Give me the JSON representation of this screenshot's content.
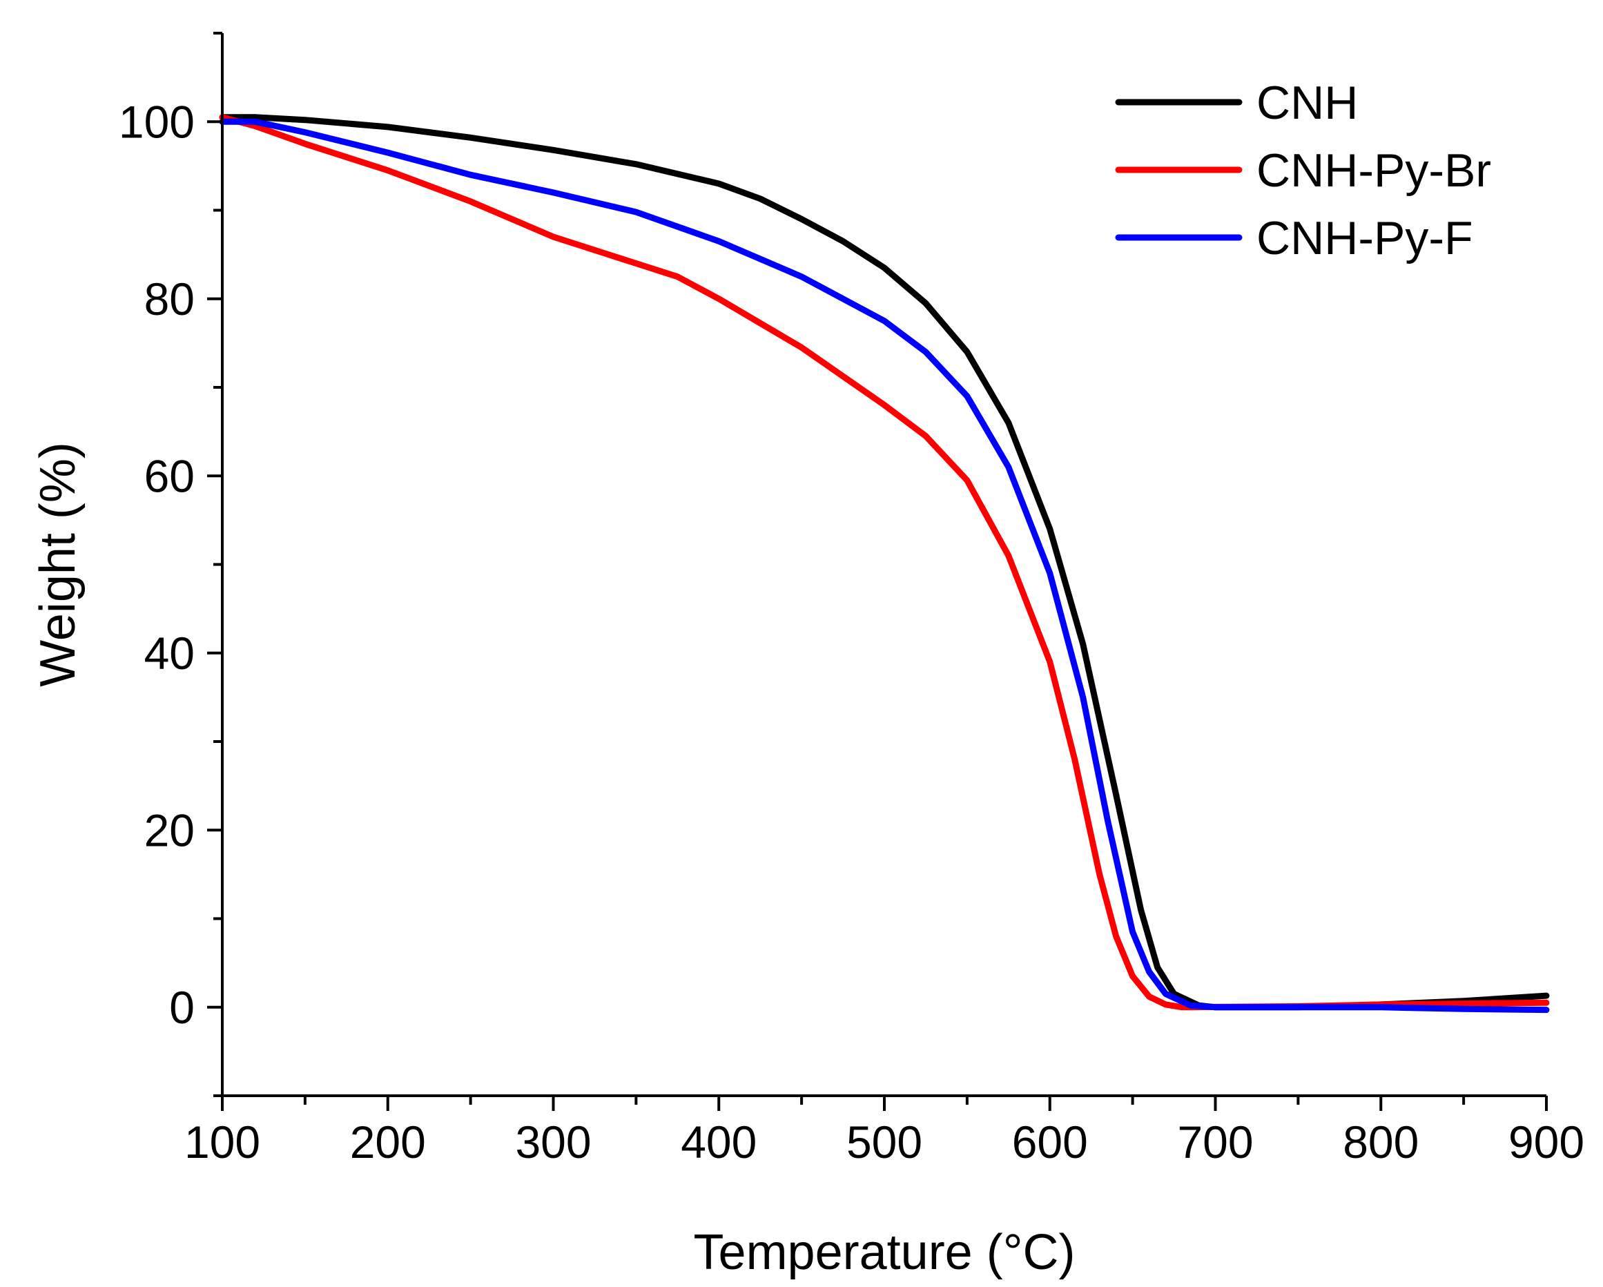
{
  "chart_data": {
    "type": "line",
    "title": "",
    "xlabel": "Temperature (°C)",
    "ylabel": "Weight (%)",
    "xlim": [
      100,
      900
    ],
    "ylim": [
      -10,
      110
    ],
    "x_ticks": [
      100,
      200,
      300,
      400,
      500,
      600,
      700,
      800,
      900
    ],
    "y_ticks": [
      0,
      20,
      40,
      60,
      80,
      100
    ],
    "x_minor_step": 50,
    "y_minor_step": 10,
    "grid": false,
    "legend_position": "top-right",
    "series": [
      {
        "name": "CNH",
        "color": "#000000",
        "points": [
          [
            100,
            100.5
          ],
          [
            120,
            100.5
          ],
          [
            150,
            100.2
          ],
          [
            200,
            99.4
          ],
          [
            250,
            98.2
          ],
          [
            300,
            96.8
          ],
          [
            350,
            95.2
          ],
          [
            400,
            93.0
          ],
          [
            425,
            91.3
          ],
          [
            450,
            89.0
          ],
          [
            475,
            86.5
          ],
          [
            500,
            83.5
          ],
          [
            525,
            79.5
          ],
          [
            550,
            74.0
          ],
          [
            575,
            66.0
          ],
          [
            600,
            54.0
          ],
          [
            620,
            41.0
          ],
          [
            640,
            24.0
          ],
          [
            655,
            11.0
          ],
          [
            665,
            4.5
          ],
          [
            675,
            1.5
          ],
          [
            690,
            0.2
          ],
          [
            700,
            0.0
          ],
          [
            750,
            0.0
          ],
          [
            800,
            0.3
          ],
          [
            850,
            0.7
          ],
          [
            900,
            1.3
          ]
        ]
      },
      {
        "name": "CNH-Py-Br",
        "color": "#ff0000",
        "points": [
          [
            100,
            100.5
          ],
          [
            120,
            99.5
          ],
          [
            150,
            97.5
          ],
          [
            200,
            94.5
          ],
          [
            250,
            91.0
          ],
          [
            300,
            87.0
          ],
          [
            350,
            84.0
          ],
          [
            375,
            82.5
          ],
          [
            400,
            80.0
          ],
          [
            450,
            74.5
          ],
          [
            500,
            68.0
          ],
          [
            525,
            64.5
          ],
          [
            550,
            59.5
          ],
          [
            575,
            51.0
          ],
          [
            600,
            39.0
          ],
          [
            615,
            28.0
          ],
          [
            630,
            15.0
          ],
          [
            640,
            8.0
          ],
          [
            650,
            3.5
          ],
          [
            660,
            1.2
          ],
          [
            670,
            0.3
          ],
          [
            680,
            0.0
          ],
          [
            750,
            0.1
          ],
          [
            800,
            0.3
          ],
          [
            900,
            0.5
          ]
        ]
      },
      {
        "name": "CNH-Py-F",
        "color": "#0000ff",
        "points": [
          [
            100,
            100.0
          ],
          [
            120,
            100.0
          ],
          [
            150,
            98.8
          ],
          [
            200,
            96.5
          ],
          [
            250,
            94.0
          ],
          [
            300,
            92.0
          ],
          [
            350,
            89.8
          ],
          [
            400,
            86.5
          ],
          [
            450,
            82.5
          ],
          [
            500,
            77.5
          ],
          [
            525,
            74.0
          ],
          [
            550,
            69.0
          ],
          [
            575,
            61.0
          ],
          [
            600,
            49.0
          ],
          [
            620,
            35.0
          ],
          [
            635,
            21.0
          ],
          [
            650,
            8.5
          ],
          [
            660,
            4.0
          ],
          [
            670,
            1.5
          ],
          [
            685,
            0.2
          ],
          [
            700,
            0.0
          ],
          [
            750,
            0.0
          ],
          [
            800,
            0.0
          ],
          [
            850,
            -0.2
          ],
          [
            900,
            -0.3
          ]
        ]
      }
    ]
  }
}
